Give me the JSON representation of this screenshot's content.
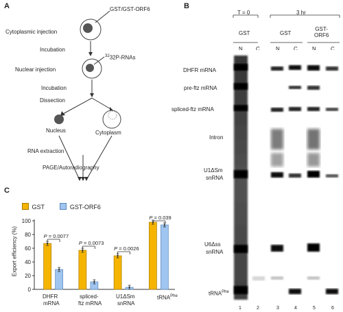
{
  "panel_a": {
    "letter": "A",
    "steps": [
      "Cytoplasmic injection",
      "Incubation",
      "Nuclear injection",
      "Incubation",
      "Dissection",
      "Nucleus",
      "Cytoplasm",
      "RNA extraction",
      "PAGE/Autoradiography"
    ],
    "inject_label_1": "GST/GST-ORF6",
    "inject_label_2": "32P-RNAs"
  },
  "panel_b": {
    "letter": "B",
    "time_labels": [
      "T = 0",
      "3 hr"
    ],
    "condition_labels": [
      "GST",
      "GST",
      "GST-\nORF6"
    ],
    "condition_top": "GST-",
    "condition_bottom": "ORF6",
    "fraction_labels": [
      "N",
      "C",
      "N",
      "C",
      "N",
      "C"
    ],
    "lane_numbers": [
      "1",
      "2",
      "3",
      "4",
      "5",
      "6"
    ],
    "band_labels": [
      "DHFR mRNA",
      "pre-ftz mRNA",
      "spliced-ftz mRNA",
      "Intron",
      "U1ΔSm",
      "snRNA",
      "U6Δss",
      "snRNA",
      "tRNA"
    ],
    "trna_sup": "Phe"
  },
  "panel_c": {
    "letter": "C",
    "legend": [
      "GST",
      "GST-ORF6"
    ],
    "ylabel": "Export efficiency (%)",
    "categories_line1": [
      "DHFR",
      "spliced-",
      "U1ΔSm",
      "tRNA"
    ],
    "categories_line2": [
      "mRNA",
      "ftz mRNA",
      "snRNA",
      ""
    ],
    "trna_sup": "Phe",
    "pvalue_prefix": "P",
    "pvalues": [
      "= 0.0077",
      "= 0.0073",
      "= 0.0026",
      "= 0.039"
    ],
    "yticks": [
      "0",
      "20",
      "40",
      "60",
      "80",
      "100"
    ]
  },
  "chart_data": {
    "type": "bar",
    "categories": [
      "DHFR mRNA",
      "spliced-ftz mRNA",
      "U1ΔSm snRNA",
      "tRNAPhe"
    ],
    "series": [
      {
        "name": "GST",
        "values": [
          67,
          57,
          49,
          98
        ],
        "color": "#f5b400"
      },
      {
        "name": "GST-ORF6",
        "values": [
          29,
          11,
          3,
          94
        ],
        "color": "#9fc5f0"
      }
    ],
    "pvalues": [
      "0.0077",
      "0.0073",
      "0.0026",
      "0.039"
    ],
    "ylabel": "Export efficiency (%)",
    "ylim": [
      0,
      100
    ]
  }
}
